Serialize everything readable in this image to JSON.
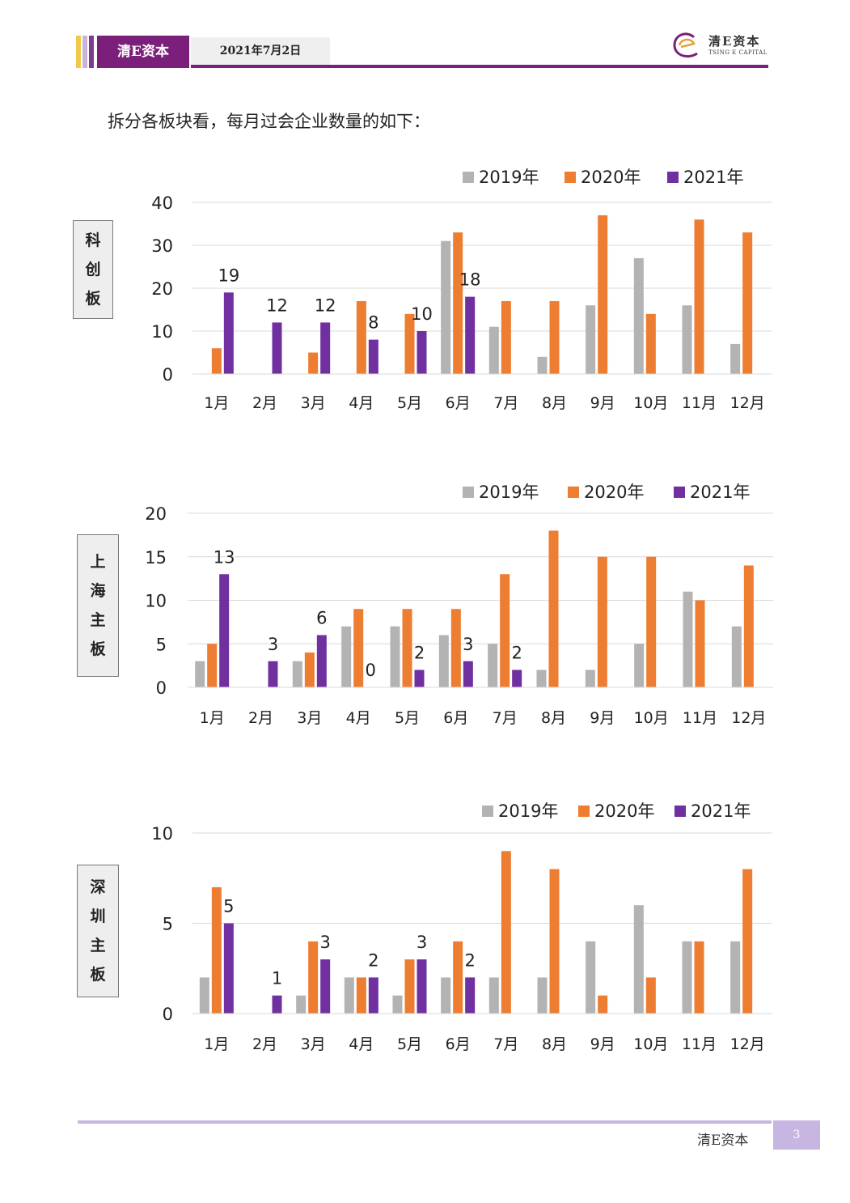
{
  "header": {
    "brand": "清E资本",
    "date": "2021年7月2日",
    "logo_cn": "清E资本",
    "logo_en": "TSING E CAPITAL"
  },
  "intro_text": "拆分各板块看，每月过会企业数量的如下：",
  "colors": {
    "2019": "#b3b3b3",
    "2020": "#ed7d31",
    "2021": "#7030a0",
    "brand": "#7a1f7a"
  },
  "chart_data": [
    {
      "type": "bar",
      "board_label": [
        "科",
        "创",
        "板"
      ],
      "categories": [
        "1月",
        "2月",
        "3月",
        "4月",
        "5月",
        "6月",
        "7月",
        "8月",
        "9月",
        "10月",
        "11月",
        "12月"
      ],
      "series": [
        {
          "name": "2019年",
          "values": [
            0,
            0,
            0,
            0,
            0,
            31,
            11,
            4,
            16,
            27,
            16,
            7
          ]
        },
        {
          "name": "2020年",
          "values": [
            6,
            0,
            5,
            17,
            14,
            33,
            17,
            17,
            37,
            14,
            36,
            33
          ]
        },
        {
          "name": "2021年",
          "values": [
            19,
            12,
            12,
            8,
            10,
            18,
            null,
            null,
            null,
            null,
            null,
            null
          ]
        }
      ],
      "data_labels_series": "2021年",
      "ylim": [
        0,
        40
      ],
      "yticks": [
        0,
        10,
        20,
        30,
        40
      ],
      "grid": true,
      "legend": "top-right"
    },
    {
      "type": "bar",
      "board_label": [
        "上",
        "海",
        "主",
        "板"
      ],
      "categories": [
        "1月",
        "2月",
        "3月",
        "4月",
        "5月",
        "6月",
        "7月",
        "8月",
        "9月",
        "10月",
        "11月",
        "12月"
      ],
      "series": [
        {
          "name": "2019年",
          "values": [
            3,
            0,
            3,
            7,
            7,
            6,
            5,
            2,
            2,
            5,
            11,
            7
          ]
        },
        {
          "name": "2020年",
          "values": [
            5,
            0,
            4,
            9,
            9,
            9,
            13,
            18,
            15,
            15,
            10,
            14
          ]
        },
        {
          "name": "2021年",
          "values": [
            13,
            3,
            6,
            0,
            2,
            3,
            2,
            null,
            null,
            null,
            null,
            null
          ]
        }
      ],
      "data_labels_series": "2021年",
      "ylim": [
        0,
        20
      ],
      "yticks": [
        0,
        5,
        10,
        15,
        20
      ],
      "grid": true,
      "legend": "top-right"
    },
    {
      "type": "bar",
      "board_label": [
        "深",
        "圳",
        "主",
        "板"
      ],
      "categories": [
        "1月",
        "2月",
        "3月",
        "4月",
        "5月",
        "6月",
        "7月",
        "8月",
        "9月",
        "10月",
        "11月",
        "12月"
      ],
      "series": [
        {
          "name": "2019年",
          "values": [
            2,
            0,
            1,
            2,
            1,
            2,
            2,
            2,
            4,
            6,
            4,
            4
          ]
        },
        {
          "name": "2020年",
          "values": [
            7,
            0,
            4,
            2,
            3,
            4,
            9,
            8,
            1,
            2,
            4,
            8
          ]
        },
        {
          "name": "2021年",
          "values": [
            5,
            1,
            3,
            2,
            3,
            2,
            null,
            null,
            null,
            null,
            null,
            null
          ]
        }
      ],
      "data_labels_series": "2021年",
      "ylim": [
        0,
        10
      ],
      "yticks": [
        0,
        5,
        10
      ],
      "grid": true,
      "legend": "top-right"
    }
  ],
  "footer": {
    "brand": "清E资本",
    "page": "3"
  }
}
